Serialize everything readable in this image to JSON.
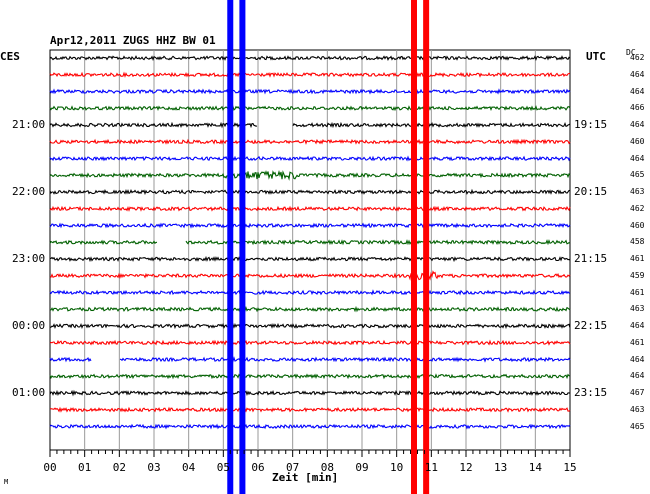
{
  "chart_data": {
    "type": "line",
    "title": "Apr12,2011   ZUGS HHZ BW 01",
    "left_header": "CES",
    "right_header": "UTC",
    "dc_header": "DC",
    "xlabel": "Zeit [min]",
    "xlim": [
      0,
      15
    ],
    "x_ticks": [
      "00",
      "01",
      "02",
      "03",
      "04",
      "05",
      "06",
      "07",
      "08",
      "09",
      "10",
      "11",
      "12",
      "13",
      "14",
      "15"
    ],
    "left_time_labels": [
      {
        "trace": 4,
        "label": "21:00"
      },
      {
        "trace": 8,
        "label": "22:00"
      },
      {
        "trace": 12,
        "label": "23:00"
      },
      {
        "trace": 16,
        "label": "00:00"
      },
      {
        "trace": 20,
        "label": "01:00"
      }
    ],
    "right_time_labels": [
      {
        "trace": 4,
        "label": "19:15"
      },
      {
        "trace": 8,
        "label": "20:15"
      },
      {
        "trace": 12,
        "label": "21:15"
      },
      {
        "trace": 16,
        "label": "22:15"
      },
      {
        "trace": 20,
        "label": "23:15"
      }
    ],
    "trace_colors": [
      "#000000",
      "#ff0000",
      "#0000ff",
      "#006000"
    ],
    "dc_offsets": [
      462,
      464,
      464,
      466,
      464,
      460,
      464,
      465,
      463,
      462,
      460,
      458,
      461,
      459,
      461,
      463,
      464,
      461,
      464,
      464,
      467,
      463,
      465
    ],
    "events": [
      {
        "color": "#0000ff",
        "minutes": [
          5.2,
          5.55
        ]
      },
      {
        "color": "#ff0000",
        "minutes": [
          10.5,
          10.85
        ]
      }
    ],
    "gaps": [
      {
        "trace": 4,
        "from": 6.0,
        "to": 7.0
      },
      {
        "trace": 11,
        "from": 3.1,
        "to": 3.9
      },
      {
        "trace": 18,
        "from": 1.2,
        "to": 2.0
      }
    ],
    "bursts": [
      {
        "trace": 7,
        "from": 5.0,
        "to": 7.2
      },
      {
        "trace": 13,
        "from": 10.3,
        "to": 11.2
      }
    ],
    "corner_mark": "M"
  }
}
